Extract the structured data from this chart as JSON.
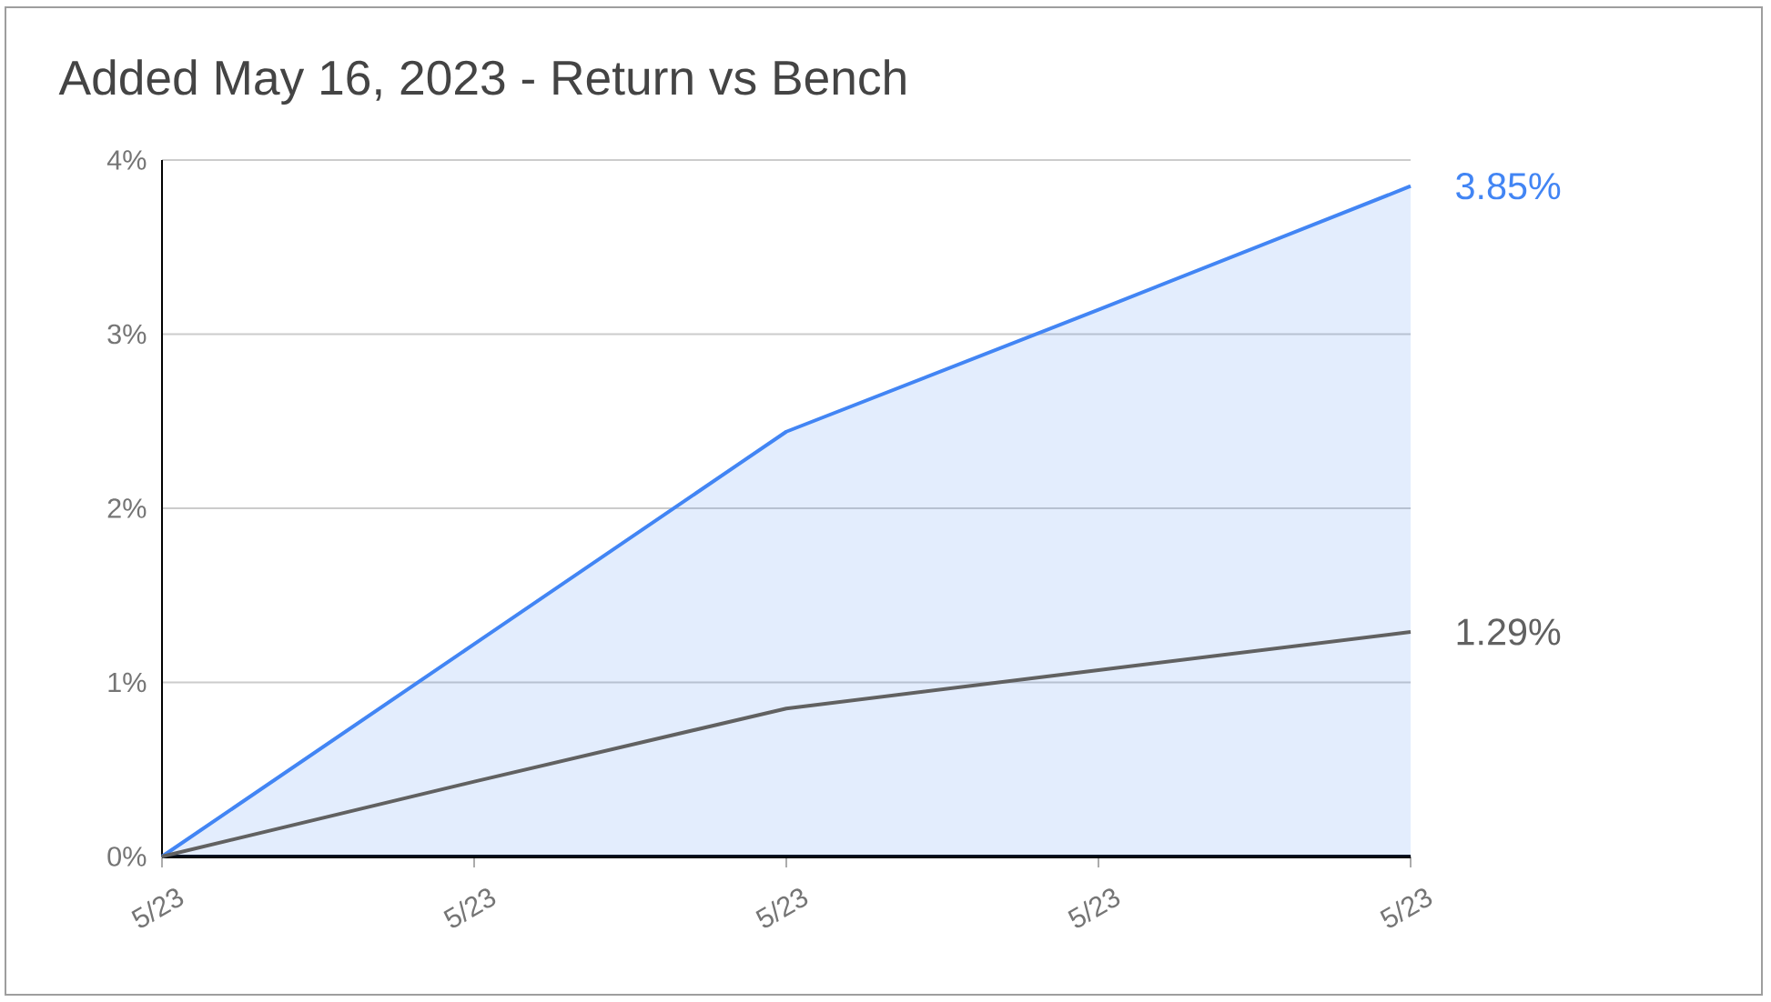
{
  "chart_data": {
    "type": "area",
    "title": "Added May 16, 2023 - Return vs Bench",
    "categories": [
      "5/23",
      "5/23",
      "5/23",
      "5/23",
      "5/23"
    ],
    "ylim": [
      0,
      4
    ],
    "yticks": [
      {
        "value": 0,
        "label": "0%"
      },
      {
        "value": 1,
        "label": "1%"
      },
      {
        "value": 2,
        "label": "2%"
      },
      {
        "value": 3,
        "label": "3%"
      },
      {
        "value": 4,
        "label": "4%"
      }
    ],
    "grid": "y",
    "series": [
      {
        "color": "#4285f4",
        "values": [
          0,
          1.22,
          2.44,
          3.14,
          3.85
        ],
        "value_labels": [
          null,
          null,
          null,
          null,
          "3.85%"
        ]
      },
      {
        "type": "line",
        "color": "#616161",
        "values": [
          0,
          0.43,
          0.85,
          1.07,
          1.29
        ],
        "value_labels": [
          null,
          null,
          null,
          null,
          "1.29%"
        ]
      }
    ]
  }
}
